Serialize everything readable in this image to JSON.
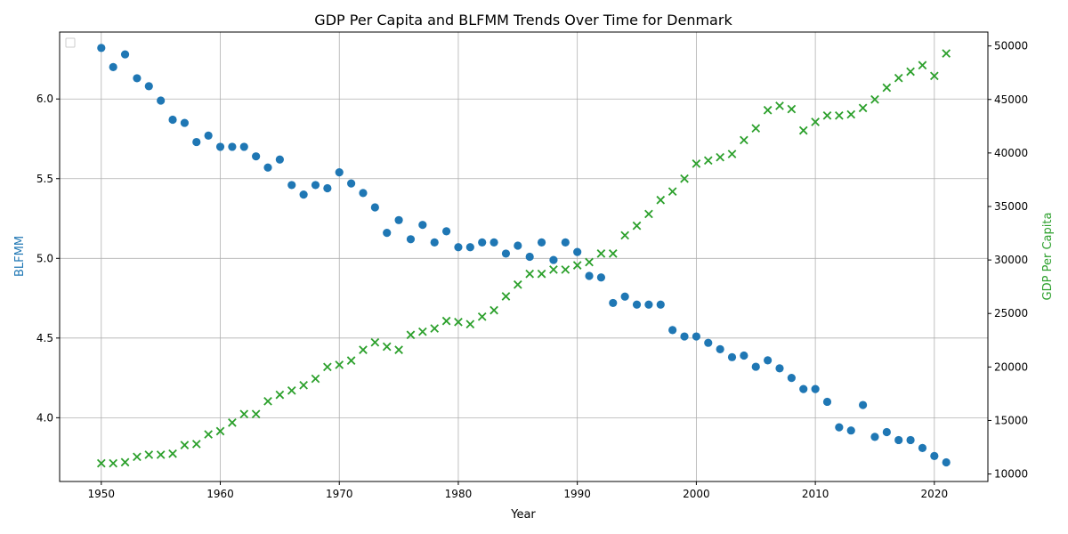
{
  "chart_data": {
    "type": "scatter",
    "title": "GDP Per Capita and BLFMM Trends Over Time for Denmark",
    "xlabel": "Year",
    "ylabel_left": "BLFMM",
    "ylabel_right": "GDP Per Capita",
    "xlim": [
      1946.5,
      2024.5
    ],
    "ylim_left": [
      3.6,
      6.42
    ],
    "ylim_right": [
      9300,
      51300
    ],
    "x_ticks": [
      1950,
      1960,
      1970,
      1980,
      1990,
      2000,
      2010,
      2020
    ],
    "y_ticks_left": [
      4.0,
      4.5,
      5.0,
      5.5,
      6.0
    ],
    "y_ticks_right": [
      10000,
      15000,
      20000,
      25000,
      30000,
      35000,
      40000,
      45000,
      50000
    ],
    "grid": true,
    "legend": "top-left (empty)",
    "colors": {
      "blfmm": "#1f77b4",
      "gdp": "#2ca02c",
      "grid": "#b0b0b0"
    },
    "x": [
      1950,
      1951,
      1952,
      1953,
      1954,
      1955,
      1956,
      1957,
      1958,
      1959,
      1960,
      1961,
      1962,
      1963,
      1964,
      1965,
      1966,
      1967,
      1968,
      1969,
      1970,
      1971,
      1972,
      1973,
      1974,
      1975,
      1976,
      1977,
      1978,
      1979,
      1980,
      1981,
      1982,
      1983,
      1984,
      1985,
      1986,
      1987,
      1988,
      1989,
      1990,
      1991,
      1992,
      1993,
      1994,
      1995,
      1996,
      1997,
      1998,
      1999,
      2000,
      2001,
      2002,
      2003,
      2004,
      2005,
      2006,
      2007,
      2008,
      2009,
      2010,
      2011,
      2012,
      2013,
      2014,
      2015,
      2016,
      2017,
      2018,
      2019,
      2020,
      2021
    ],
    "series": [
      {
        "name": "BLFMM",
        "axis": "left",
        "marker": "circle",
        "values": [
          6.32,
          6.2,
          6.28,
          6.13,
          6.08,
          5.99,
          5.87,
          5.85,
          5.73,
          5.77,
          5.7,
          5.7,
          5.7,
          5.64,
          5.57,
          5.62,
          5.46,
          5.4,
          5.46,
          5.44,
          5.54,
          5.47,
          5.41,
          5.32,
          5.16,
          5.24,
          5.12,
          5.21,
          5.1,
          5.17,
          5.07,
          5.07,
          5.1,
          5.1,
          5.03,
          5.08,
          5.01,
          5.1,
          4.99,
          5.1,
          5.04,
          4.89,
          4.88,
          4.72,
          4.76,
          4.71,
          4.71,
          4.71,
          4.55,
          4.51,
          4.51,
          4.47,
          4.43,
          4.38,
          4.39,
          4.32,
          4.36,
          4.31,
          4.25,
          4.18,
          4.18,
          4.1,
          3.94,
          3.92,
          4.08,
          3.88,
          3.91,
          3.86,
          3.86,
          3.81,
          3.76,
          3.72
        ]
      },
      {
        "name": "GDP Per Capita",
        "axis": "right",
        "marker": "x",
        "values": [
          11000,
          11000,
          11100,
          11600,
          11800,
          11800,
          11900,
          12700,
          12800,
          13700,
          14000,
          14800,
          15600,
          15600,
          16800,
          17400,
          17800,
          18300,
          18900,
          20000,
          20200,
          20600,
          21600,
          22300,
          21900,
          21600,
          23000,
          23300,
          23600,
          24300,
          24200,
          24000,
          24700,
          25300,
          26600,
          27700,
          28700,
          28700,
          29100,
          29100,
          29500,
          29800,
          30600,
          30600,
          32300,
          33200,
          34300,
          35600,
          36400,
          37600,
          39000,
          39300,
          39600,
          39900,
          41200,
          42300,
          44000,
          44400,
          44100,
          42100,
          42900,
          43500,
          43500,
          43600,
          44200,
          45000,
          46100,
          47000,
          47600,
          48200,
          47200,
          49300
        ]
      }
    ]
  }
}
